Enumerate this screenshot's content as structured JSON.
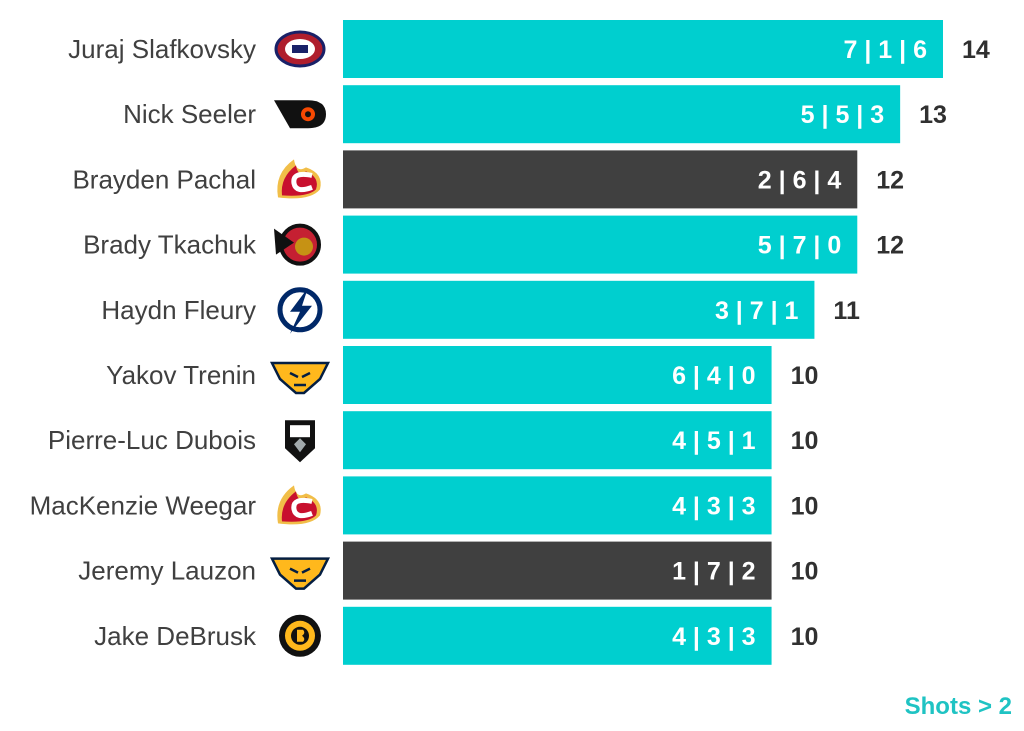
{
  "chart_data": {
    "type": "bar",
    "orientation": "horizontal",
    "categories": [
      "Juraj Slafkovsky",
      "Nick Seeler",
      "Brayden Pachal",
      "Brady Tkachuk",
      "Haydn Fleury",
      "Yakov Trenin",
      "Pierre-Luc Dubois",
      "MacKenzie Weegar",
      "Jeremy Lauzon",
      "Jake DeBrusk"
    ],
    "values": [
      14,
      13,
      12,
      12,
      11,
      10,
      10,
      10,
      10,
      10
    ],
    "bar_labels": [
      "7 | 1 | 6",
      "5 | 5 | 3",
      "2 | 6 | 4",
      "5 | 7 | 0",
      "3 | 7 | 1",
      "6 | 4 | 0",
      "4 | 5 | 1",
      "4 | 3 | 3",
      "1 | 7 | 2",
      "4 | 3 | 3"
    ],
    "highlighted": [
      false,
      false,
      true,
      false,
      false,
      false,
      false,
      false,
      true,
      false
    ],
    "team_icons": [
      "canadiens-logo-icon",
      "flyers-logo-icon",
      "flames-logo-icon",
      "senators-logo-icon",
      "lightning-logo-icon",
      "predators-logo-icon",
      "kings-logo-icon",
      "flames-logo-icon",
      "predators-logo-icon",
      "bruins-logo-icon"
    ],
    "xlim": [
      0,
      14
    ],
    "grid": false,
    "legend": "none"
  },
  "footer": {
    "note": "Shots > 2"
  },
  "colors": {
    "bar": "#00CFCF",
    "bar_highlight": "#404040",
    "label_text": "#404040",
    "value_text": "#303030",
    "bar_text": "#ffffff",
    "accent": "#1FC3C3"
  }
}
